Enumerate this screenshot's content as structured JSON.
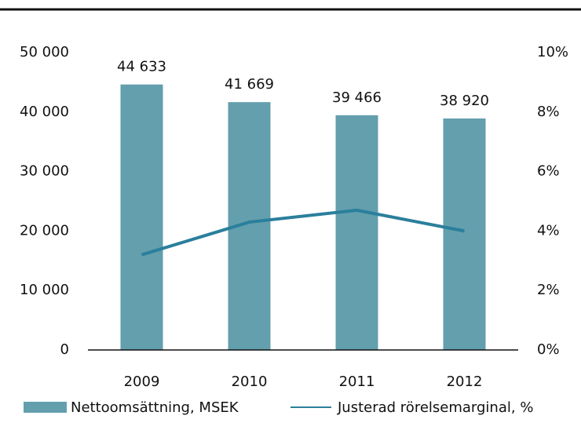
{
  "chart_data": {
    "type": "bar",
    "categories": [
      "2009",
      "2010",
      "2011",
      "2012"
    ],
    "series": [
      {
        "name": "Nettoomsättning, MSEK",
        "type": "bar",
        "color": "#639fad",
        "values": [
          44633,
          41669,
          39466,
          38920
        ],
        "value_labels": [
          "44 633",
          "41 669",
          "39 466",
          "38 920"
        ]
      },
      {
        "name": "Justerad rörelsemarginal, %",
        "type": "line",
        "axis": "y2",
        "color": "#2a7f9c",
        "values": [
          3.2,
          4.3,
          4.7,
          4.0
        ]
      }
    ],
    "ylim": [
      0,
      50000
    ],
    "yticks": [
      {
        "value": 0,
        "label": "0"
      },
      {
        "value": 10000,
        "label": "10 000"
      },
      {
        "value": 20000,
        "label": "20 000"
      },
      {
        "value": 30000,
        "label": "30 000"
      },
      {
        "value": 40000,
        "label": "40 000"
      },
      {
        "value": 50000,
        "label": "50 000"
      }
    ],
    "y2lim": [
      0,
      10
    ],
    "y2ticks": [
      {
        "value": 0,
        "label": "0%"
      },
      {
        "value": 2,
        "label": "2%"
      },
      {
        "value": 4,
        "label": "4%"
      },
      {
        "value": 6,
        "label": "6%"
      },
      {
        "value": 8,
        "label": "8%"
      },
      {
        "value": 10,
        "label": "10%"
      }
    ],
    "legend": "bottom"
  }
}
